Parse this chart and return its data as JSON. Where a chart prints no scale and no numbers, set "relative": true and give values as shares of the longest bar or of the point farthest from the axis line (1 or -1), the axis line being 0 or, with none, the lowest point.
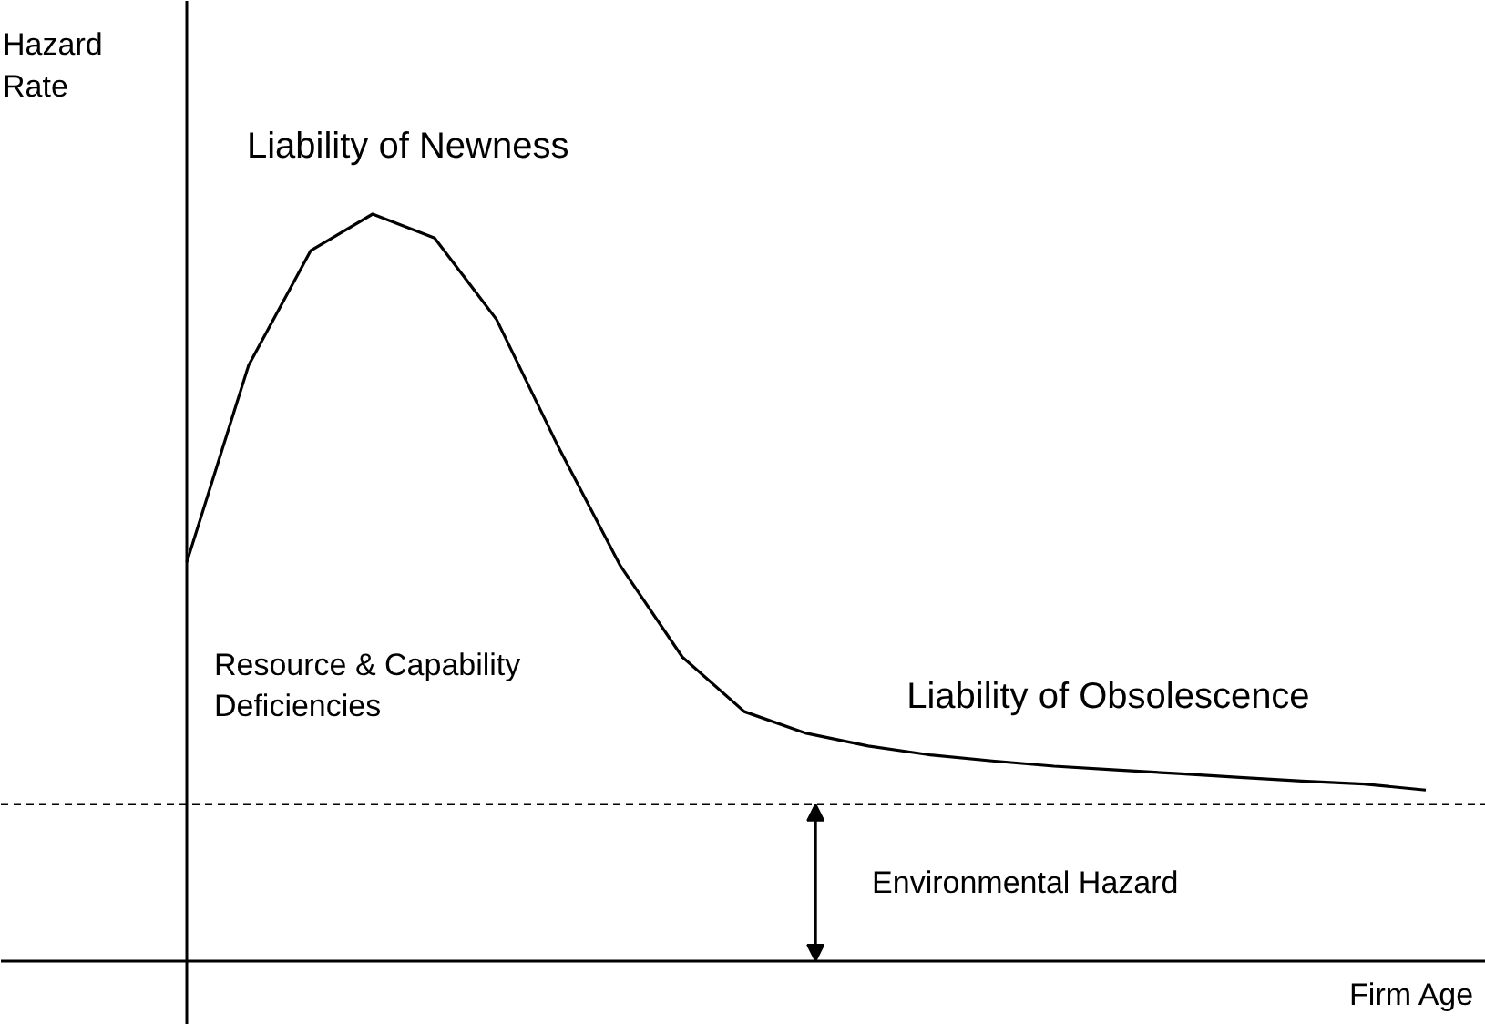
{
  "chart_data": {
    "type": "line",
    "relative": true,
    "ylabel": "Hazard\nRate",
    "xlabel": "Firm Age",
    "categories": [
      null,
      null,
      null,
      null,
      null,
      null,
      null,
      null,
      null,
      null,
      null,
      null,
      null,
      null,
      null,
      null,
      null,
      null,
      null,
      null,
      null
    ],
    "series": [
      {
        "color": "#000000",
        "values": [
          0.534,
          0.798,
          0.951,
          1.0,
          0.968,
          0.859,
          0.688,
          0.529,
          0.407,
          0.334,
          0.305,
          0.288,
          0.276,
          0.268,
          0.261,
          0.256,
          0.251,
          0.246,
          0.241,
          0.237,
          0.229
        ]
      }
    ],
    "ref_lines": [
      {
        "axis": "y",
        "value": 0.21,
        "line_style": "dashed",
        "color": "#000000"
      }
    ],
    "annotations": [
      "Liability of Newness",
      "Resource & Capability\nDeficiencies",
      "Liability of Obsolescence",
      "Environmental Hazard"
    ],
    "grid": false,
    "marker": "none",
    "line_style": "solid"
  }
}
